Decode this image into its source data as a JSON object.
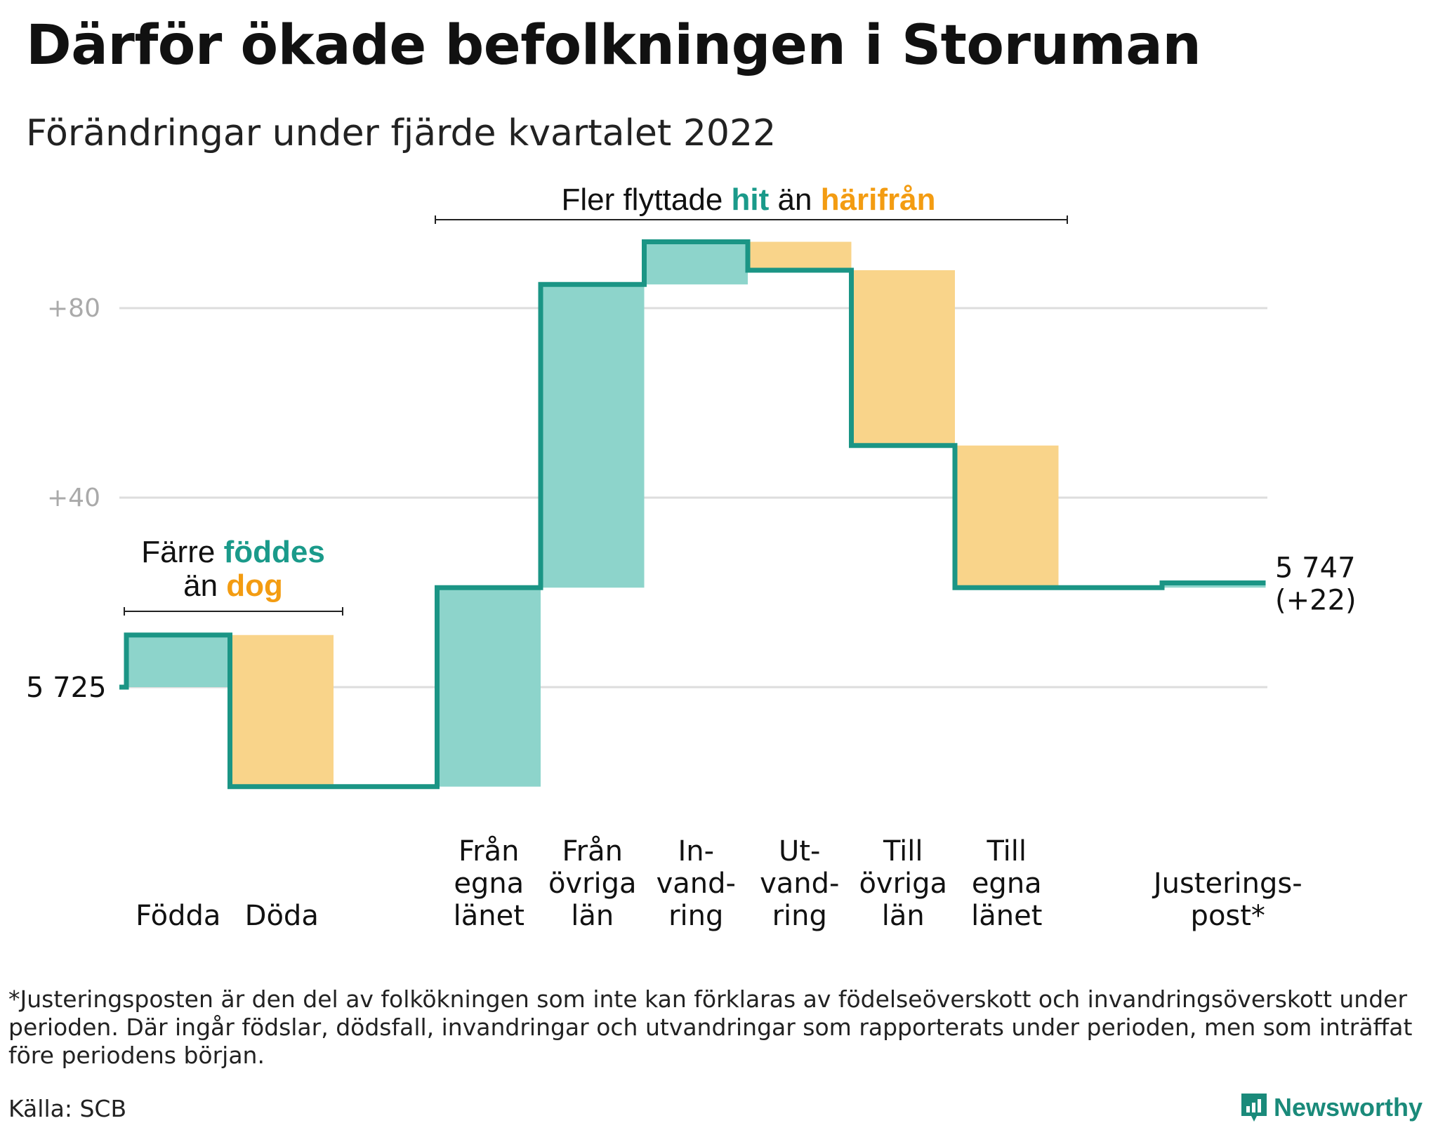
{
  "title": "Därför ökade befolkningen i Storuman",
  "subtitle": "Förändringar under fjärde kvartalet 2022",
  "chart_data": {
    "type": "waterfall",
    "base_value_label": "5 725",
    "end_value_label": "5 747",
    "end_change_label": "(+22)",
    "y_ticks": [
      {
        "value": 80,
        "label": "+80"
      },
      {
        "value": 40,
        "label": "+40"
      },
      {
        "value": 0,
        "label": ""
      }
    ],
    "ylim": [
      -25,
      100
    ],
    "steps": [
      {
        "category": "Födda",
        "label_lines": [
          "Födda"
        ],
        "change": 11,
        "kind": "in"
      },
      {
        "category": "Döda",
        "label_lines": [
          "Döda"
        ],
        "change": -32,
        "kind": "out"
      },
      {
        "category": "",
        "label_lines": [],
        "change": 0,
        "kind": "none"
      },
      {
        "category": "Från egna länet",
        "label_lines": [
          "Från",
          "egna",
          "länet"
        ],
        "change": 42,
        "kind": "in"
      },
      {
        "category": "Från övriga län",
        "label_lines": [
          "Från",
          "övriga",
          "län"
        ],
        "change": 64,
        "kind": "in"
      },
      {
        "category": "Invandring",
        "label_lines": [
          "In-",
          "vand-",
          "ring"
        ],
        "change": 9,
        "kind": "in"
      },
      {
        "category": "Utvandring",
        "label_lines": [
          "Ut-",
          "vand-",
          "ring"
        ],
        "change": -6,
        "kind": "out"
      },
      {
        "category": "Till övriga län",
        "label_lines": [
          "Till",
          "övriga",
          "län"
        ],
        "change": -37,
        "kind": "out"
      },
      {
        "category": "Till egna länet",
        "label_lines": [
          "Till",
          "egna",
          "länet"
        ],
        "change": -30,
        "kind": "out"
      },
      {
        "category": "",
        "label_lines": [],
        "change": 0,
        "kind": "none"
      },
      {
        "category": "Justeringspost*",
        "label_lines": [
          "Justerings-",
          "post*"
        ],
        "change": 1,
        "kind": "in"
      }
    ],
    "annotations": [
      {
        "parts": [
          {
            "text": "Färre ",
            "color": "#111111"
          },
          {
            "text": "föddes",
            "color": "#1a9a8a"
          }
        ],
        "parts2": [
          {
            "text": "än ",
            "color": "#111111"
          },
          {
            "text": "dog",
            "color": "#f39c12"
          }
        ]
      },
      {
        "parts": [
          {
            "text": "Fler flyttade ",
            "color": "#111111"
          },
          {
            "text": "hit",
            "color": "#1a9a8a"
          },
          {
            "text": " än ",
            "color": "#111111"
          },
          {
            "text": "härifrån",
            "color": "#f39c12"
          }
        ]
      }
    ],
    "colors": {
      "in_fill": "#8dd4cb",
      "out_fill": "#f9d48a",
      "line": "#1b9585",
      "grid": "#dddddd",
      "tick": "#aaaaaa",
      "teal_text": "#1a9a8a",
      "orange_text": "#f39c12"
    }
  },
  "footnote": "*Justeringsposten är den del av folkökningen som inte kan förklaras av födelseöverskott och invandringsöverskott under perioden. Där ingår födslar, dödsfall, invandringar och utvandringar som rapporterats under perioden, men som inträffat före periodens början.",
  "source": "Källa: SCB",
  "brand": {
    "name": "Newsworthy",
    "icon": "newsworthy-logo-icon"
  }
}
